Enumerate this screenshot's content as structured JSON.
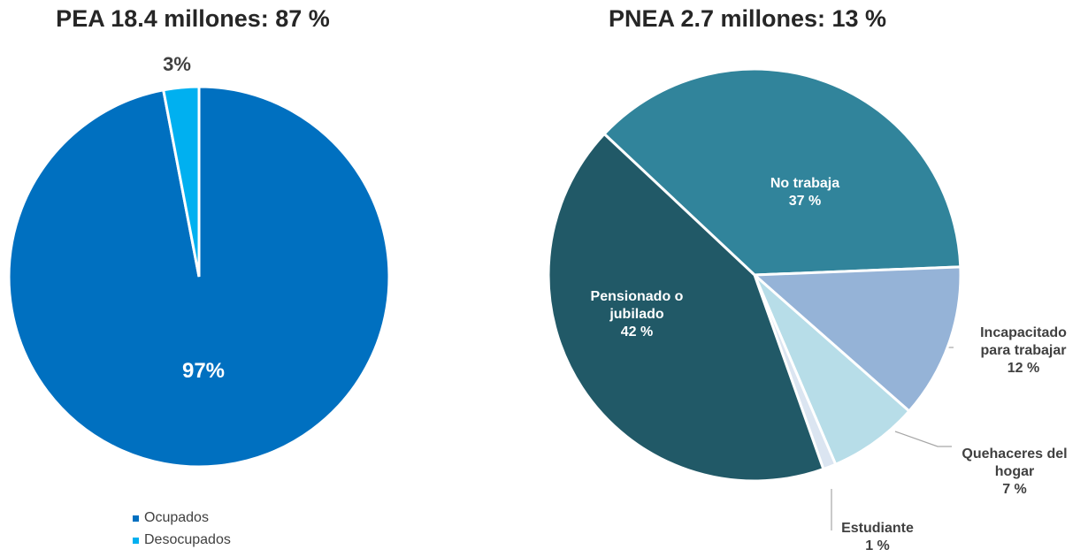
{
  "chart_data": [
    {
      "type": "pie",
      "title": "PEA 18.4 millones: 87 %",
      "categories": [
        "Ocupados",
        "Desocupados"
      ],
      "values": [
        97,
        3
      ],
      "value_labels": [
        "97%",
        "3%"
      ],
      "colors": [
        "#0070c0",
        "#00b0f0"
      ],
      "legend": "bottom"
    },
    {
      "type": "pie",
      "title": "PNEA 2.7 millones: 13 %",
      "categories": [
        "No trabaja",
        "Incapacitado para trabajar",
        "Quehaceres del hogar",
        "Estudiante",
        "Pensionado o jubilado"
      ],
      "values": [
        37,
        12,
        7,
        1,
        42
      ],
      "value_labels": [
        "37 %",
        "12 %",
        "7 %",
        "1 %",
        "42 %"
      ],
      "colors": [
        "#31849b",
        "#95b3d7",
        "#b7dde8",
        "#dbe5f1",
        "#215967"
      ]
    }
  ]
}
